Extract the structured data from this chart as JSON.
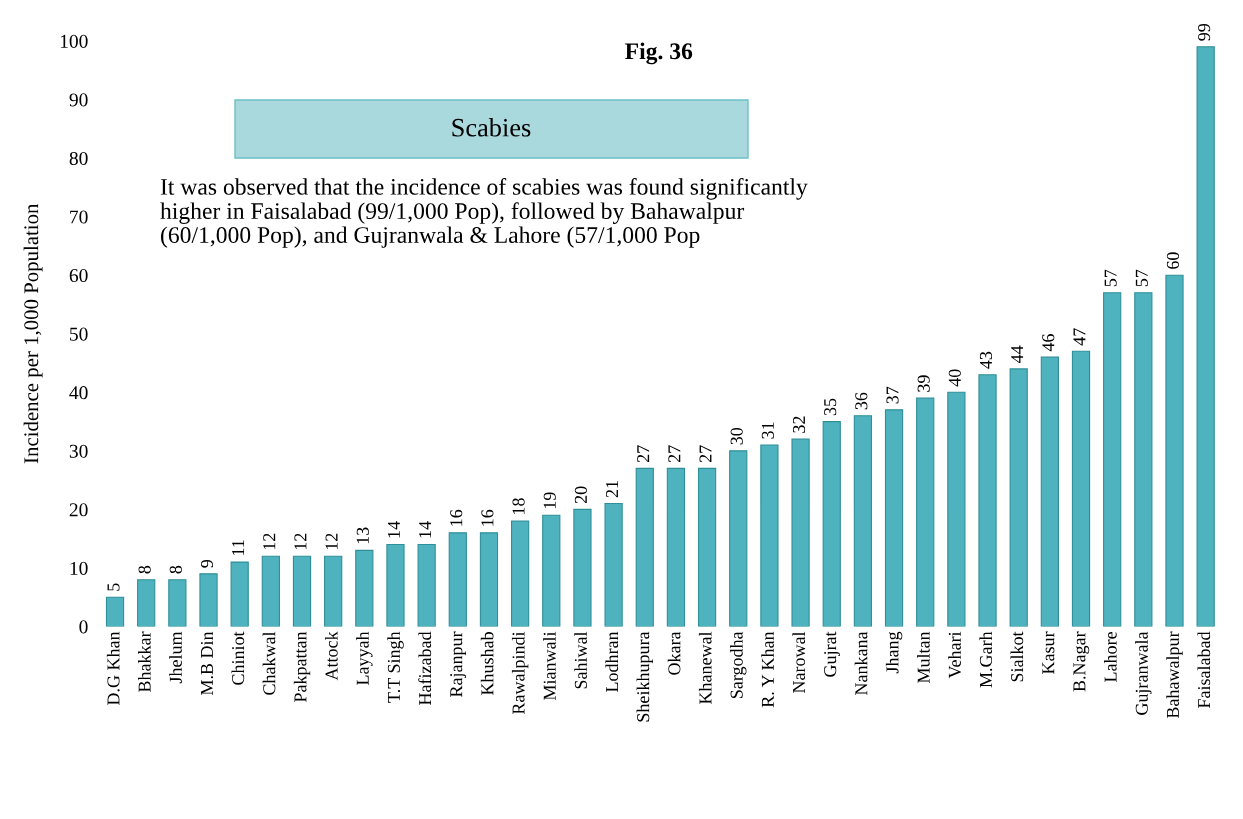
{
  "chart_data": {
    "type": "bar",
    "title": "Fig. 36",
    "ylabel": "Incidence per 1,000 Population",
    "categories": [
      "D.G Khan",
      "Bhakkar",
      "Jhelum",
      "M.B Din",
      "Chiniot",
      "Chakwal",
      "Pakpattan",
      "Attock",
      "Layyah",
      "T.T Singh",
      "Hafizabad",
      "Rajanpur",
      "Khushab",
      "Rawalpindi",
      "Mianwali",
      "Sahiwal",
      "Lodhran",
      "Sheikhupura",
      "Okara",
      "Khanewal",
      "Sargodha",
      "R. Y Khan",
      "Narowal",
      "Gujrat",
      "Nankana",
      "Jhang",
      "Multan",
      "Vehari",
      "M.Garh",
      "Sialkot",
      "Kasur",
      "B.Nagar",
      "Lahore",
      "Gujranwala",
      "Bahawalpur",
      "Faisalabad"
    ],
    "values": [
      5,
      8,
      8,
      9,
      11,
      12,
      12,
      12,
      13,
      14,
      14,
      16,
      16,
      18,
      19,
      20,
      21,
      27,
      27,
      27,
      30,
      31,
      32,
      35,
      36,
      37,
      39,
      40,
      43,
      44,
      46,
      47,
      57,
      57,
      60,
      99
    ],
    "color": "#4fb3bf",
    "data_labels": true,
    "ylim": [
      0,
      100
    ],
    "yticks": [
      0,
      10,
      20,
      30,
      40,
      50,
      60,
      70,
      80,
      90,
      100
    ],
    "grid": false,
    "annotations": [
      "Scabies",
      "It was observed that the incidence of scabies was found significantly higher in Faisalabad (99/1,000 Pop), followed by Bahawalpur (60/1,000 Pop), and Gujranwala & Lahore (57/1,000 Pop"
    ]
  }
}
